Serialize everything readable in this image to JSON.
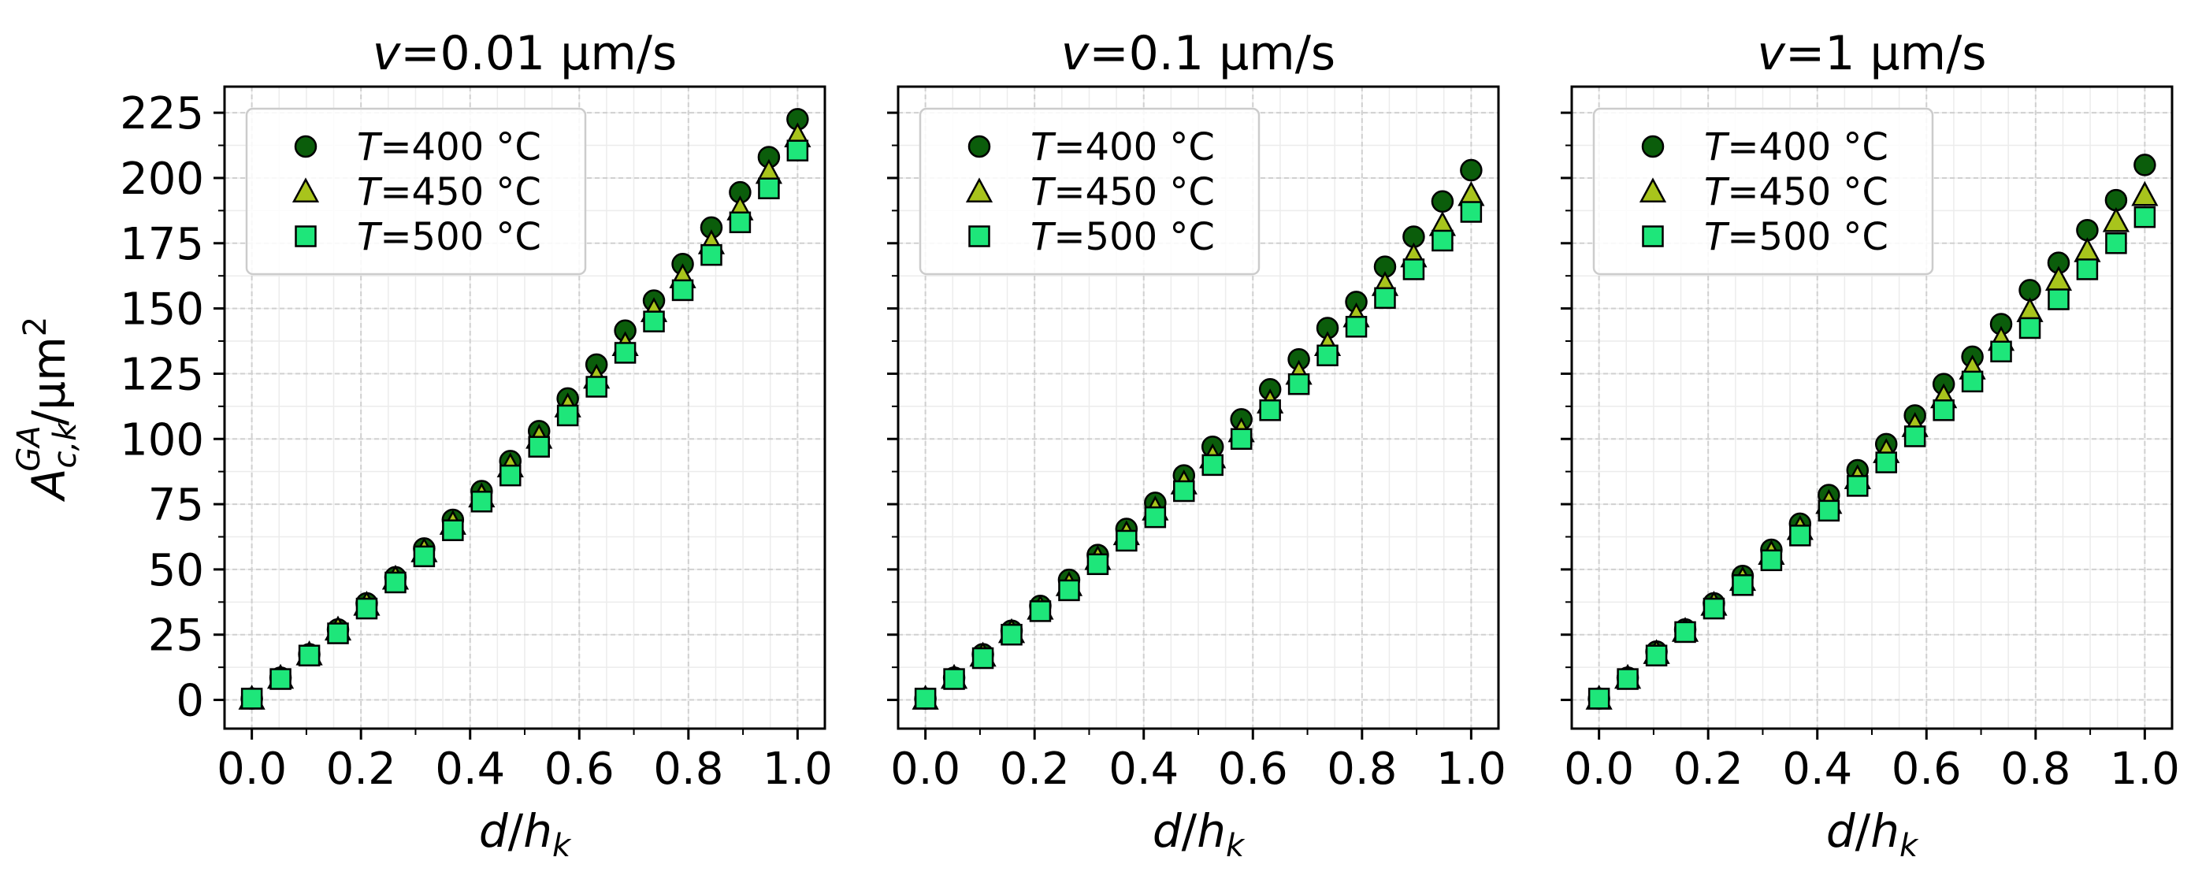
{
  "chart_data": [
    {
      "type": "scatter",
      "title": "v=0.01 µm/s",
      "title_var": "v",
      "title_rest": "=0.01 µm/s",
      "xlabel": "d/h_k",
      "ylabel": "A_{c,k}^{GA}/µm²",
      "xlim": [
        -0.05,
        1.05
      ],
      "ylim": [
        -11,
        235
      ],
      "xticks": [
        0.0,
        0.2,
        0.4,
        0.6,
        0.8,
        1.0
      ],
      "xtick_labels": [
        "0.0",
        "0.2",
        "0.4",
        "0.6",
        "0.8",
        "1.0"
      ],
      "yticks": [
        0,
        25,
        50,
        75,
        100,
        125,
        150,
        175,
        200,
        225
      ],
      "ytick_labels": [
        "0",
        "25",
        "50",
        "75",
        "100",
        "125",
        "150",
        "175",
        "200",
        "225"
      ],
      "grid": true,
      "legend": "top-left",
      "x": [
        0.0,
        0.0526,
        0.1053,
        0.1579,
        0.2105,
        0.2632,
        0.3158,
        0.3684,
        0.4211,
        0.4737,
        0.5263,
        0.5789,
        0.6316,
        0.6842,
        0.7368,
        0.7895,
        0.8421,
        0.8947,
        0.9474,
        1.0
      ],
      "series": [
        {
          "name": "T=400 °C",
          "var": "T",
          "rest": "=400 °C",
          "marker": "circle",
          "color": "#0b5d0b",
          "values": [
            0.5,
            8.5,
            17.5,
            27,
            37,
            47,
            58,
            69,
            80,
            91.5,
            103,
            115.5,
            128.5,
            141.5,
            153,
            167,
            181,
            194.5,
            208,
            222.5
          ]
        },
        {
          "name": "T=450 °C",
          "var": "T",
          "rest": "=450 °C",
          "marker": "triangle",
          "color": "#a8c41c",
          "values": [
            0.5,
            8.5,
            17.5,
            27,
            36.5,
            46.5,
            57,
            67.5,
            78,
            89.5,
            100.5,
            112.5,
            123.5,
            136,
            149,
            162,
            175,
            188,
            202,
            216
          ]
        },
        {
          "name": "T=500 °C",
          "var": "T",
          "rest": "=500 °C",
          "marker": "square",
          "color": "#1ee67a",
          "values": [
            0.5,
            8,
            17,
            25.5,
            35,
            45,
            55,
            65,
            76,
            86,
            97,
            109,
            120,
            133,
            145,
            157,
            170.5,
            183,
            196,
            210.5
          ]
        }
      ]
    },
    {
      "type": "scatter",
      "title": "v=0.1 µm/s",
      "title_var": "v",
      "title_rest": "=0.1 µm/s",
      "xlabel": "d/h_k",
      "ylabel": "",
      "xlim": [
        -0.05,
        1.05
      ],
      "ylim": [
        -11,
        235
      ],
      "xticks": [
        0.0,
        0.2,
        0.4,
        0.6,
        0.8,
        1.0
      ],
      "xtick_labels": [
        "0.0",
        "0.2",
        "0.4",
        "0.6",
        "0.8",
        "1.0"
      ],
      "yticks": [
        0,
        25,
        50,
        75,
        100,
        125,
        150,
        175,
        200,
        225
      ],
      "ytick_labels": [],
      "grid": true,
      "legend": "top-left",
      "x": [
        0.0,
        0.0526,
        0.1053,
        0.1579,
        0.2105,
        0.2632,
        0.3158,
        0.3684,
        0.4211,
        0.4737,
        0.5263,
        0.5789,
        0.6316,
        0.6842,
        0.7368,
        0.7895,
        0.8421,
        0.8947,
        0.9474,
        1.0
      ],
      "series": [
        {
          "name": "T=400 °C",
          "var": "T",
          "rest": "=400 °C",
          "marker": "circle",
          "color": "#0b5d0b",
          "values": [
            0.5,
            8.5,
            17.5,
            26.5,
            36,
            46,
            55.5,
            65.5,
            75.5,
            86,
            97,
            107.5,
            119,
            130.5,
            142.5,
            152.5,
            166,
            177.5,
            191,
            203
          ]
        },
        {
          "name": "T=450 °C",
          "var": "T",
          "rest": "=450 °C",
          "marker": "triangle",
          "color": "#a8c41c",
          "values": [
            0.5,
            8.5,
            17,
            26,
            35,
            44,
            54,
            63.5,
            73,
            83,
            93,
            103,
            114,
            125,
            136,
            147,
            159,
            170,
            182,
            193.5
          ]
        },
        {
          "name": "T=500 °C",
          "var": "T",
          "rest": "=500 °C",
          "marker": "square",
          "color": "#1ee67a",
          "values": [
            0.5,
            8,
            16,
            25,
            34,
            42,
            52,
            61,
            70,
            80,
            90,
            100,
            111,
            121,
            132,
            143,
            154,
            165,
            176,
            187
          ]
        }
      ]
    },
    {
      "type": "scatter",
      "title": "v=1 µm/s",
      "title_var": "v",
      "title_rest": "=1 µm/s",
      "xlabel": "d/h_k",
      "ylabel": "",
      "xlim": [
        -0.05,
        1.05
      ],
      "ylim": [
        -11,
        235
      ],
      "xticks": [
        0.0,
        0.2,
        0.4,
        0.6,
        0.8,
        1.0
      ],
      "xtick_labels": [
        "0.0",
        "0.2",
        "0.4",
        "0.6",
        "0.8",
        "1.0"
      ],
      "yticks": [
        0,
        25,
        50,
        75,
        100,
        125,
        150,
        175,
        200,
        225
      ],
      "ytick_labels": [],
      "grid": true,
      "legend": "top-left",
      "x": [
        0.0,
        0.0526,
        0.1053,
        0.1579,
        0.2105,
        0.2632,
        0.3158,
        0.3684,
        0.4211,
        0.4737,
        0.5263,
        0.5789,
        0.6316,
        0.6842,
        0.7368,
        0.7895,
        0.8421,
        0.8947,
        0.9474,
        1.0
      ],
      "series": [
        {
          "name": "T=400 °C",
          "var": "T",
          "rest": "=400 °C",
          "marker": "circle",
          "color": "#0b5d0b",
          "values": [
            0.5,
            8.5,
            18.5,
            27,
            37,
            47.5,
            57.5,
            67.5,
            78.5,
            88,
            98,
            109,
            121,
            131.5,
            144,
            157,
            167.5,
            180,
            191.5,
            205
          ]
        },
        {
          "name": "T=450 °C",
          "var": "T",
          "rest": "=450 °C",
          "marker": "triangle",
          "color": "#a8c41c",
          "values": [
            0.5,
            8.5,
            18,
            26.5,
            36.5,
            46,
            56,
            65.5,
            75.5,
            85,
            95,
            105,
            116,
            127,
            138,
            149,
            161,
            172,
            183.5,
            193.5
          ]
        },
        {
          "name": "T=500 °C",
          "var": "T",
          "rest": "=500 °C",
          "marker": "square",
          "color": "#1ee67a",
          "values": [
            0.5,
            8,
            17,
            26,
            35,
            44,
            53.5,
            63,
            72.5,
            82,
            91,
            101,
            111,
            122,
            133.5,
            142.5,
            153.5,
            165,
            175,
            185
          ]
        }
      ]
    }
  ],
  "colors": {
    "edge": "#000000",
    "grid": "#d0d0d0",
    "grid_minor": "#ececec",
    "legend_frame": "#cccccc"
  }
}
